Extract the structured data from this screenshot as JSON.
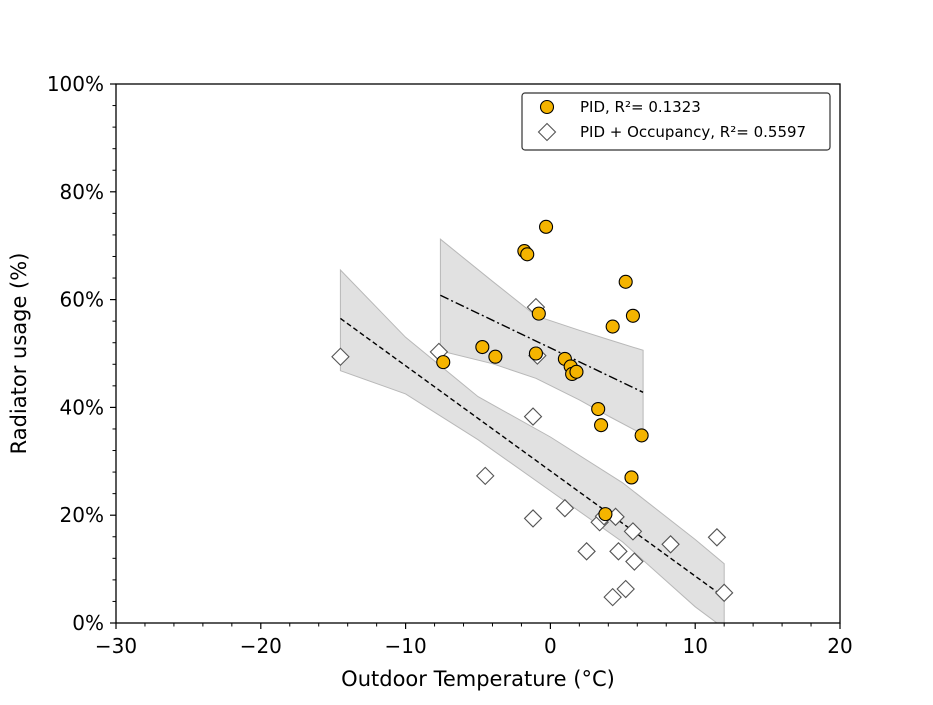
{
  "chart_data": {
    "type": "scatter",
    "title": "",
    "xlabel": "Outdoor Temperature (°C)",
    "ylabel": "Radiator usage (%)",
    "xlim": [
      -30,
      20
    ],
    "ylim": [
      0,
      100
    ],
    "x_ticks": [
      -30,
      -20,
      -10,
      0,
      10,
      20
    ],
    "x_tick_labels": [
      "−30",
      "−20",
      "−10",
      "0",
      "10",
      "20"
    ],
    "y_ticks": [
      0,
      20,
      40,
      60,
      80,
      100
    ],
    "y_tick_labels": [
      "0%",
      "20%",
      "40%",
      "60%",
      "80%",
      "100%"
    ],
    "grid": false,
    "legend": "top-right",
    "series": [
      {
        "name": "PID, R²= 0.1323",
        "marker": "circle",
        "color": "#f5b400",
        "edge_color": "#000000",
        "points": [
          [
            -7.4,
            48.4
          ],
          [
            -4.7,
            51.2
          ],
          [
            -3.8,
            49.4
          ],
          [
            -1.8,
            69.0
          ],
          [
            -1.6,
            68.4
          ],
          [
            -0.3,
            73.5
          ],
          [
            -0.8,
            57.4
          ],
          [
            -1.0,
            50.0
          ],
          [
            1.0,
            49.0
          ],
          [
            1.4,
            47.6
          ],
          [
            1.5,
            46.2
          ],
          [
            1.8,
            46.6
          ],
          [
            3.3,
            39.7
          ],
          [
            3.5,
            36.7
          ],
          [
            4.3,
            55.0
          ],
          [
            5.2,
            63.3
          ],
          [
            5.7,
            57.0
          ],
          [
            5.6,
            27.0
          ],
          [
            6.3,
            34.8
          ],
          [
            3.8,
            20.2
          ]
        ],
        "fit": {
          "x": [
            -7.6,
            6.4
          ],
          "y": [
            60.8,
            42.8
          ],
          "line_style": "dash-dot"
        },
        "band": {
          "x": [
            -7.6,
            -4,
            -1,
            2,
            4,
            6.4
          ],
          "upper": [
            71.2,
            63.4,
            57.0,
            54.3,
            52.6,
            50.6
          ],
          "lower": [
            50.5,
            48.1,
            45.4,
            41.4,
            38.4,
            35.0
          ]
        }
      },
      {
        "name": "PID + Occupancy, R²= 0.5597",
        "marker": "diamond",
        "color": "#ffffff",
        "edge_color": "#555555",
        "points": [
          [
            -14.5,
            49.4
          ],
          [
            -7.7,
            50.3
          ],
          [
            -4.5,
            27.3
          ],
          [
            -1.0,
            58.6
          ],
          [
            -0.9,
            49.6
          ],
          [
            -1.2,
            38.3
          ],
          [
            -1.2,
            19.4
          ],
          [
            1.0,
            21.3
          ],
          [
            2.5,
            13.3
          ],
          [
            3.4,
            18.7
          ],
          [
            3.7,
            19.8
          ],
          [
            4.5,
            19.7
          ],
          [
            4.7,
            13.3
          ],
          [
            5.7,
            17.0
          ],
          [
            5.8,
            11.4
          ],
          [
            4.3,
            4.8
          ],
          [
            5.2,
            6.3
          ],
          [
            8.3,
            14.6
          ],
          [
            11.5,
            15.9
          ],
          [
            12.0,
            5.6
          ]
        ],
        "fit": {
          "x": [
            -14.5,
            12.0
          ],
          "y": [
            56.5,
            4.8
          ],
          "line_style": "dashed"
        },
        "band": {
          "x": [
            -14.5,
            -10,
            -5,
            0,
            5,
            10,
            12
          ],
          "upper": [
            65.5,
            53.0,
            42.0,
            34.5,
            26.0,
            15.5,
            11.0
          ],
          "lower": [
            46.8,
            42.5,
            34.0,
            24.5,
            15.0,
            3.0,
            -1.0
          ]
        }
      }
    ]
  }
}
